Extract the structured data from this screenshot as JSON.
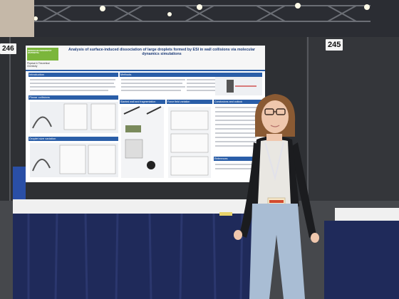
{
  "booth_numbers": {
    "left": "246",
    "right": "245"
  },
  "poster": {
    "title": "Analysis of surface-induced dissociation of large droplets formed by ESI in wall collisions via molecular dynamics simulations",
    "logo_text": "BERGISCHE UNIVERSITÄT WUPPERTAL",
    "department": "Physical & Theoretical Chemistry",
    "sections": {
      "introduction": "Introduction",
      "methods": "Methods",
      "planar_collisions": "Planar collisions",
      "droplet_size_variation": "Droplet size variation",
      "slanted_wall": "Slanted wall and fragmentation",
      "force_field": "Force field variation",
      "conclusions": "Conclusions and outlook",
      "references": "References"
    }
  },
  "colors": {
    "backdrop": "#2e3034",
    "poster_bg": "#ffffff",
    "poster_header_bar": "#2a5ea8",
    "logo_green": "#7bb63b",
    "tablecloth": "#1f2a5a",
    "table_top": "#f0f0f0",
    "cardigan": "#1b1c1f",
    "jeans": "#a9bdd4",
    "hair": "#8a5a33"
  }
}
